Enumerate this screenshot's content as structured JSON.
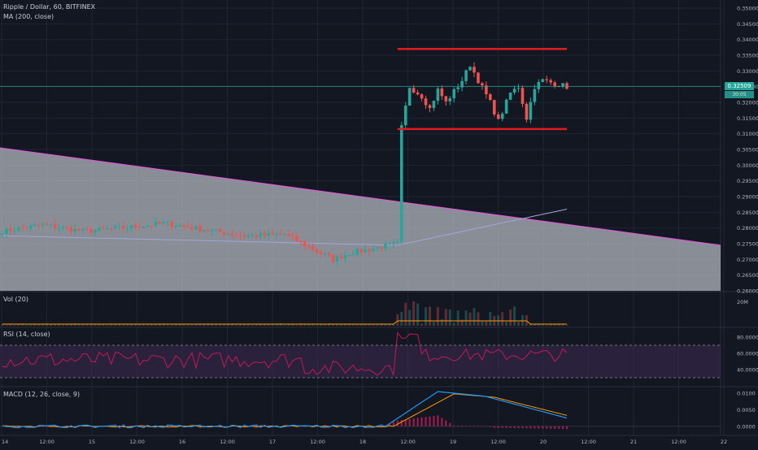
{
  "header": {
    "symbol": "Ripple / Dollar, 60, BITFINEX",
    "ma_label": "MA (200, close)"
  },
  "indicators": {
    "vol_label": "Vol (20)",
    "rsi_label": "RSI (14, close)",
    "macd_label": "MACD (12, 26, close, 9)"
  },
  "price_badge": "0.32509",
  "timer_badge": "30:05",
  "colors": {
    "background": "#131722",
    "grid": "#1f2433",
    "up": "#26a69a",
    "down": "#ef5350",
    "channel": "#e41a1c",
    "wedge_fill": "#b2b5be",
    "wedge_line": "#e05bd6",
    "ma": "#9fa8da",
    "rsi": "#c2185b",
    "rsi_band": "#3b2a4e",
    "macd": "#2196f3",
    "signal": "#ff9800",
    "hist": "#e91e63"
  },
  "chart_data": [
    {
      "type": "candlestick",
      "pane": "price",
      "y_ticks": [
        "0.35000",
        "0.34500",
        "0.34000",
        "0.33500",
        "0.33000",
        "0.32500",
        "0.32000",
        "0.31500",
        "0.31000",
        "0.30500",
        "0.30000",
        "0.29500",
        "0.29000",
        "0.28500",
        "0.28000",
        "0.27500",
        "0.27000",
        "0.26500",
        "0.26000"
      ],
      "ylim": [
        0.26,
        0.35
      ],
      "x_ticks": [
        "14",
        "12:00",
        "15",
        "12:00",
        "16",
        "12:00",
        "17",
        "12:00",
        "18",
        "12:00",
        "19",
        "12:00",
        "20",
        "12:00",
        "21",
        "12:00",
        "22"
      ],
      "ohlc_keypoints": [
        [
          0,
          0.279
        ],
        [
          10,
          0.281
        ],
        [
          20,
          0.279
        ],
        [
          30,
          0.28
        ],
        [
          40,
          0.2815
        ],
        [
          50,
          0.2795
        ],
        [
          60,
          0.2775
        ],
        [
          70,
          0.278
        ],
        [
          76,
          0.274
        ],
        [
          82,
          0.27
        ],
        [
          86,
          0.272
        ],
        [
          92,
          0.2735
        ],
        [
          98,
          0.275
        ],
        [
          99,
          0.312
        ],
        [
          101,
          0.325
        ],
        [
          104,
          0.322
        ],
        [
          106,
          0.318
        ],
        [
          108,
          0.324
        ],
        [
          110,
          0.32
        ],
        [
          114,
          0.327
        ],
        [
          116,
          0.332
        ],
        [
          118,
          0.327
        ],
        [
          121,
          0.32
        ],
        [
          123,
          0.314
        ],
        [
          126,
          0.323
        ],
        [
          128,
          0.325
        ],
        [
          130,
          0.315
        ],
        [
          132,
          0.325
        ],
        [
          134,
          0.327
        ],
        [
          137,
          0.326
        ],
        [
          140,
          0.325
        ]
      ],
      "ma200": {
        "start": 0.2775,
        "mid": 0.2745,
        "end": 0.286
      },
      "channel": {
        "top": 0.337,
        "bottom": 0.3115,
        "x_start": 98,
        "x_end": 140
      },
      "wedge": {
        "left": 0.3055,
        "right": 0.2745
      },
      "last_price": 0.32509
    },
    {
      "type": "bar",
      "pane": "volume",
      "y_ticks": [
        "20M"
      ]
    },
    {
      "type": "line",
      "pane": "rsi",
      "y_ticks": [
        "80.0000",
        "60.0000",
        "40.0000"
      ],
      "ylim": [
        20,
        90
      ],
      "bands": [
        30,
        70
      ]
    },
    {
      "type": "line",
      "pane": "macd",
      "y_ticks": [
        "0.0100",
        "0.0050",
        "0.0000"
      ],
      "ylim": [
        -0.002,
        0.0115
      ]
    }
  ]
}
